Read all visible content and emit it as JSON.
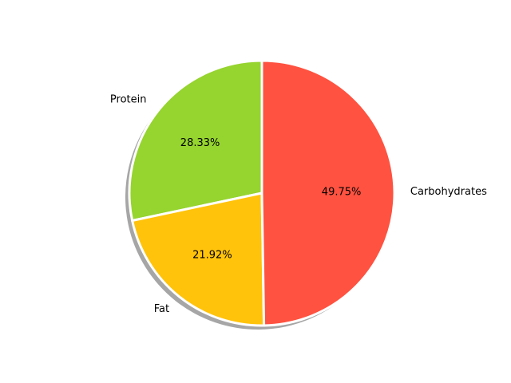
{
  "chart_data": {
    "type": "pie",
    "title": "",
    "start_angle_deg": 90,
    "direction": "counterclockwise",
    "shadow": true,
    "legend": "none",
    "slices": [
      {
        "label": "Protein",
        "value": 28.33,
        "pct_label": "28.33%",
        "color": "#96d42f"
      },
      {
        "label": "Fat",
        "value": 21.92,
        "pct_label": "21.92%",
        "color": "#ffc30b"
      },
      {
        "label": "Carbohydrates",
        "value": 49.75,
        "pct_label": "49.75%",
        "color": "#ff5240"
      }
    ]
  }
}
